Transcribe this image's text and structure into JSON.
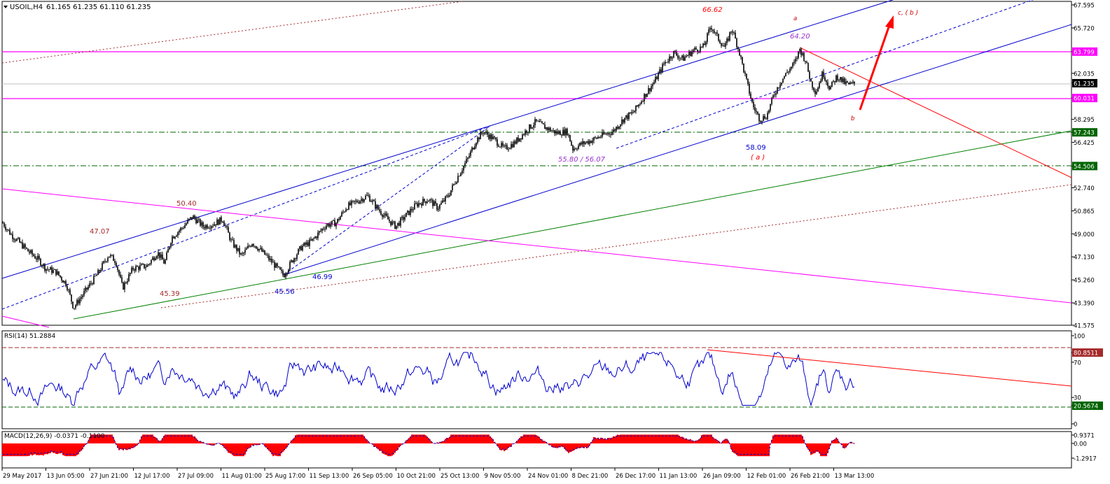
{
  "header": {
    "symbol_label": "USOIL,H4",
    "ohlc": "61.165 61.235 61.110 61.235"
  },
  "chart_data": [
    {
      "type": "candlestick",
      "symbol": "USOIL",
      "timeframe": "H4",
      "ohlc_last": {
        "open": 61.165,
        "high": 61.235,
        "low": 61.11,
        "close": 61.235
      },
      "ylim": [
        41.575,
        67.595
      ],
      "y_ticks": [
        "67.595",
        "65.720",
        "63.799",
        "62.035",
        "61.235",
        "60.031",
        "58.295",
        "57.243",
        "56.425",
        "54.506",
        "52.740",
        "50.865",
        "49.000",
        "47.130",
        "45.260",
        "43.390",
        "41.575"
      ],
      "x_ticks": [
        "29 May 2017",
        "13 Jun 05:00",
        "27 Jun 21:00",
        "12 Jul 17:00",
        "27 Jul 09:00",
        "11 Aug 01:00",
        "25 Aug 17:00",
        "11 Sep 13:00",
        "26 Sep 05:00",
        "10 Oct 21:00",
        "25 Oct 13:00",
        "9 Nov 05:00",
        "24 Nov 01:00",
        "8 Dec 21:00",
        "26 Dec 17:00",
        "11 Jan 13:00",
        "26 Jan 09:00",
        "12 Feb 01:00",
        "26 Feb 21:00",
        "13 Mar 13:00"
      ],
      "price_path": [
        [
          0,
          50.2
        ],
        [
          15,
          49.0
        ],
        [
          40,
          47.6
        ],
        [
          55,
          46.9
        ],
        [
          65,
          46.2
        ],
        [
          80,
          45.9
        ],
        [
          95,
          44.9
        ],
        [
          105,
          43.0
        ],
        [
          120,
          44.2
        ],
        [
          140,
          45.8
        ],
        [
          155,
          47.3
        ],
        [
          165,
          46.8
        ],
        [
          175,
          44.6
        ],
        [
          190,
          46.2
        ],
        [
          210,
          46.4
        ],
        [
          225,
          47.5
        ],
        [
          235,
          46.6
        ],
        [
          245,
          48.7
        ],
        [
          262,
          49.6
        ],
        [
          275,
          50.4
        ],
        [
          290,
          49.6
        ],
        [
          305,
          49.8
        ],
        [
          318,
          50.2
        ],
        [
          330,
          48.4
        ],
        [
          345,
          47.2
        ],
        [
          360,
          48.3
        ],
        [
          375,
          47.5
        ],
        [
          390,
          46.6
        ],
        [
          405,
          45.6
        ],
        [
          418,
          46.9
        ],
        [
          430,
          47.9
        ],
        [
          445,
          48.4
        ],
        [
          465,
          49.7
        ],
        [
          480,
          49.9
        ],
        [
          495,
          51.2
        ],
        [
          512,
          51.7
        ],
        [
          525,
          52.1
        ],
        [
          540,
          51.0
        ],
        [
          555,
          50.1
        ],
        [
          565,
          49.6
        ],
        [
          578,
          50.4
        ],
        [
          595,
          51.4
        ],
        [
          612,
          51.8
        ],
        [
          625,
          51.1
        ],
        [
          640,
          52.1
        ],
        [
          655,
          53.8
        ],
        [
          668,
          55.1
        ],
        [
          680,
          56.6
        ],
        [
          690,
          57.3
        ],
        [
          705,
          56.7
        ],
        [
          720,
          55.9
        ],
        [
          735,
          56.4
        ],
        [
          750,
          57.3
        ],
        [
          765,
          58.1
        ],
        [
          780,
          57.6
        ],
        [
          795,
          57.2
        ],
        [
          810,
          57.3
        ],
        [
          818,
          55.9
        ],
        [
          830,
          56.3
        ],
        [
          845,
          56.6
        ],
        [
          860,
          57.0
        ],
        [
          875,
          57.3
        ],
        [
          890,
          58.3
        ],
        [
          905,
          58.9
        ],
        [
          920,
          60.2
        ],
        [
          935,
          61.4
        ],
        [
          948,
          62.8
        ],
        [
          962,
          63.7
        ],
        [
          975,
          63.2
        ],
        [
          990,
          63.9
        ],
        [
          1005,
          64.2
        ],
        [
          1015,
          65.9
        ],
        [
          1025,
          64.9
        ],
        [
          1035,
          64.1
        ],
        [
          1045,
          65.7
        ],
        [
          1055,
          63.9
        ],
        [
          1065,
          61.6
        ],
        [
          1075,
          59.4
        ],
        [
          1085,
          58.3
        ],
        [
          1095,
          58.6
        ],
        [
          1105,
          60.3
        ],
        [
          1115,
          61.4
        ],
        [
          1125,
          62.2
        ],
        [
          1135,
          62.9
        ],
        [
          1142,
          64.0
        ],
        [
          1150,
          63.1
        ],
        [
          1158,
          61.3
        ],
        [
          1165,
          60.5
        ],
        [
          1175,
          62.1
        ],
        [
          1185,
          60.8
        ],
        [
          1195,
          61.8
        ],
        [
          1205,
          61.3
        ],
        [
          1212,
          61.1
        ],
        [
          1220,
          61.2
        ]
      ],
      "horizontal_levels": [
        {
          "value": 63.799,
          "color": "#ff00ff",
          "style": "solid"
        },
        {
          "value": 60.031,
          "color": "#ff00ff",
          "style": "solid"
        },
        {
          "value": 57.243,
          "color": "#006400",
          "style": "dash-dot"
        },
        {
          "value": 54.506,
          "color": "#006400",
          "style": "dash-dot"
        }
      ],
      "annotations": [
        {
          "text": "66.62",
          "color": "#ff0000"
        },
        {
          "text": "64.20",
          "color": "#9932cc"
        },
        {
          "text": "58.09",
          "color": "#0000cd"
        },
        {
          "text": "( a )",
          "color": "#ff0000"
        },
        {
          "text": "a",
          "color": "#cc0000"
        },
        {
          "text": "b",
          "color": "#cc0000"
        },
        {
          "text": "c, ( b )",
          "color": "#cc0000"
        },
        {
          "text": "55.80 / 56.07",
          "color": "#9932cc"
        },
        {
          "text": "50.40",
          "color": "#a52a2a"
        },
        {
          "text": "47.07",
          "color": "#a52a2a"
        },
        {
          "text": "45.39",
          "color": "#a52a2a"
        },
        {
          "text": "46.99",
          "color": "#0000cd"
        },
        {
          "text": "45.56",
          "color": "#0000cd"
        }
      ]
    },
    {
      "type": "line",
      "indicator": "RSI",
      "label": "RSI(14) 51.2884",
      "ylim": [
        0,
        100
      ],
      "y_ticks": [
        "100",
        "80.8511",
        "70",
        "30",
        "20.5674",
        "0"
      ],
      "levels": [
        80.8511,
        20.5674
      ],
      "trendline_from_to": [
        82,
        42
      ]
    },
    {
      "type": "bar",
      "indicator": "MACD",
      "label": "MACD(12,26,9) -0.0371 -0.1100",
      "y_ticks": [
        "0.9371",
        "0.00",
        "-1.2917"
      ],
      "main": -0.0371,
      "signal": -0.11
    }
  ],
  "colors": {
    "candles": "#000000",
    "channel_blue": "#0000cd",
    "magenta": "#ff00ff",
    "green": "#008000",
    "red": "#ff0000",
    "dark_red": "#a52a2a",
    "rsi_line": "#0000cd",
    "macd_hist": "#ff0000",
    "last_price_bg": "#000000"
  }
}
